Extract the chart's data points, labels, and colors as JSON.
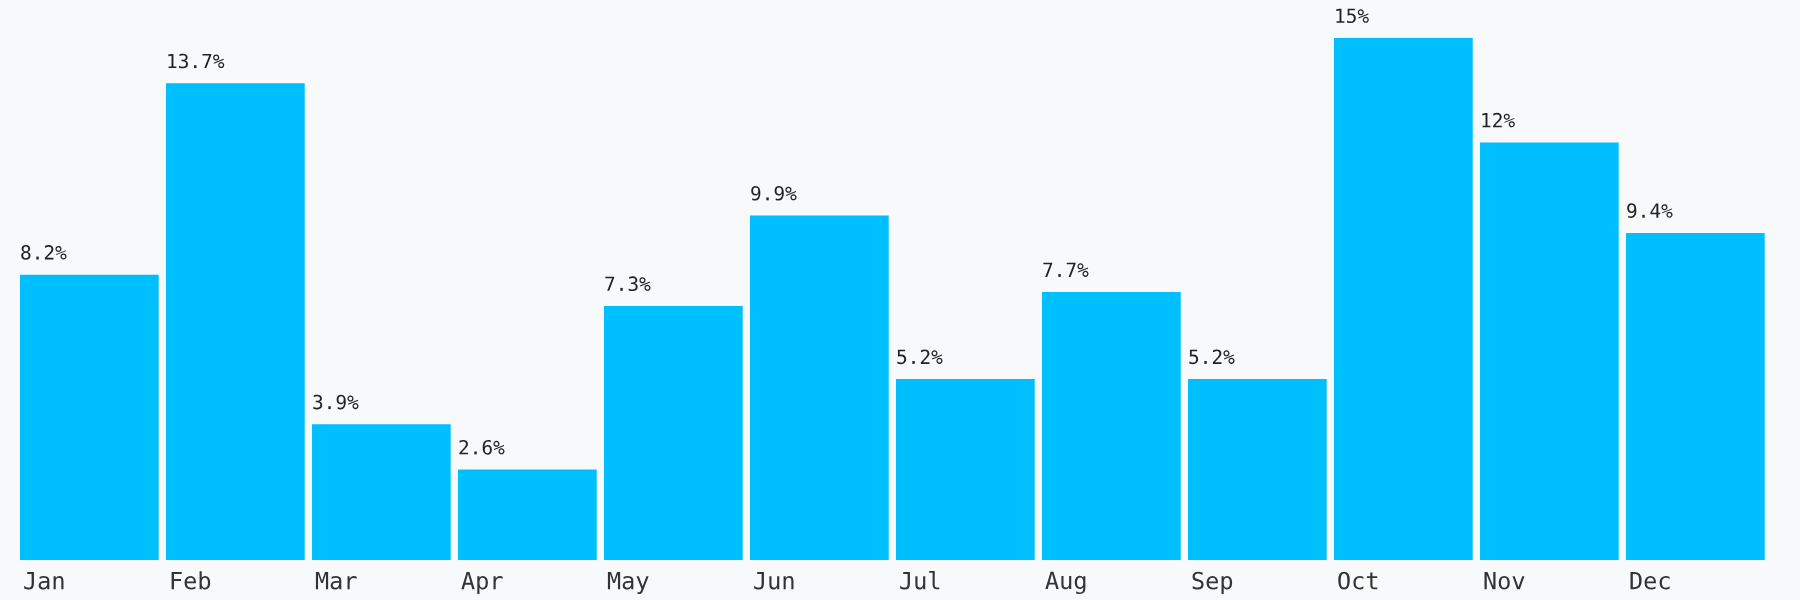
{
  "chart_data": {
    "type": "bar",
    "categories": [
      "Jan",
      "Feb",
      "Mar",
      "Apr",
      "May",
      "Jun",
      "Jul",
      "Aug",
      "Sep",
      "Oct",
      "Nov",
      "Dec"
    ],
    "values": [
      8.2,
      13.7,
      3.9,
      2.6,
      7.3,
      9.9,
      5.2,
      7.7,
      5.2,
      15,
      12,
      9.4
    ],
    "value_labels": [
      "8.2%",
      "13.7%",
      "3.9%",
      "2.6%",
      "7.3%",
      "9.9%",
      "5.2%",
      "7.7%",
      "5.2%",
      "15%",
      "12%",
      "9.4%"
    ],
    "color": "#00bfff"
  }
}
